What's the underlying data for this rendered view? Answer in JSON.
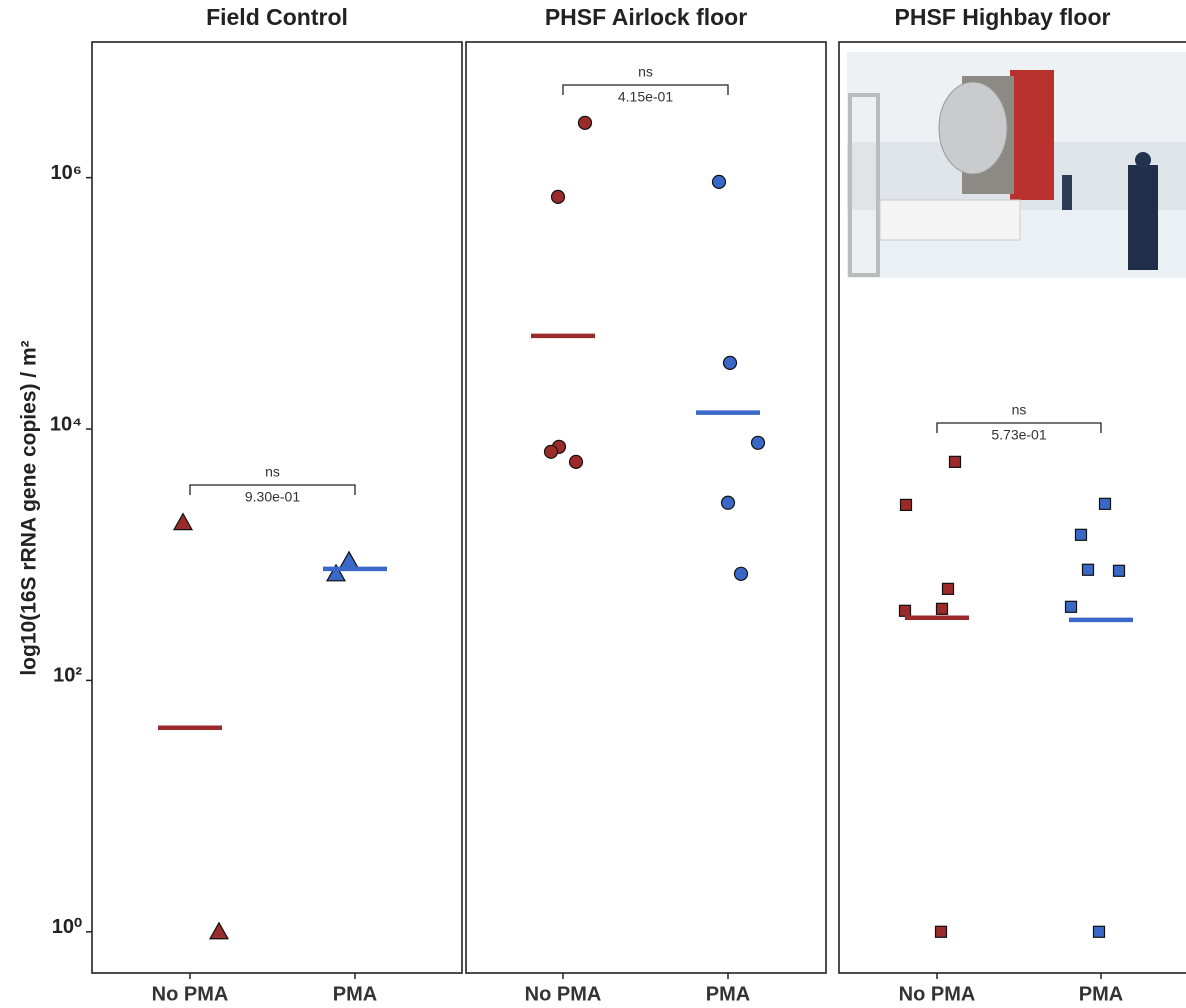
{
  "chart_data": [
    {
      "type": "strip",
      "title": "Field Control",
      "y_label": "log10(16S rRNA gene copies) / m²",
      "log_scale": true,
      "ylim": [
        0.47,
        12000000
      ],
      "yticks": [
        {
          "value": 1,
          "label": "10⁰"
        },
        {
          "value": 100,
          "label": "10²"
        },
        {
          "value": 10000,
          "label": "10⁴"
        },
        {
          "value": 1000000,
          "label": "10⁶"
        }
      ],
      "marker": "triangle",
      "categories": [
        "No PMA",
        "PMA"
      ],
      "series": [
        {
          "color": "#9b2a2a",
          "values": [
            1800,
            1
          ],
          "median": 42
        },
        {
          "color": "#3a68c8",
          "values": [
            705,
            894
          ],
          "median": 772
        }
      ],
      "annotation": {
        "label": "ns",
        "p_value": "9.30e-01"
      }
    },
    {
      "type": "strip",
      "title": "PHSF Airlock floor",
      "log_scale": true,
      "ylim": [
        0.47,
        12000000
      ],
      "marker": "circle",
      "categories": [
        "No PMA",
        "PMA"
      ],
      "series": [
        {
          "color": "#9b2a2a",
          "values": [
            2730000,
            703000,
            7220,
            6590,
            5480
          ],
          "median": 55100
        },
        {
          "color": "#3a68c8",
          "values": [
            926000,
            33600,
            7770,
            2590,
            705
          ],
          "median": 13500
        }
      ],
      "annotation": {
        "label": "ns",
        "p_value": "4.15e-01"
      }
    },
    {
      "type": "strip",
      "title": "PHSF Highbay floor",
      "log_scale": true,
      "ylim": [
        0.47,
        12000000
      ],
      "marker": "square",
      "categories": [
        "No PMA",
        "PMA"
      ],
      "series": [
        {
          "color": "#9b2a2a",
          "values": [
            5480,
            2490,
            535,
            371,
            358,
            1
          ],
          "median": 315
        },
        {
          "color": "#3a68c8",
          "values": [
            2540,
            1440,
            759,
            745,
            385,
            1
          ],
          "median": 303
        }
      ],
      "annotation": {
        "label": "ns",
        "p_value": "5.73e-01"
      }
    }
  ]
}
